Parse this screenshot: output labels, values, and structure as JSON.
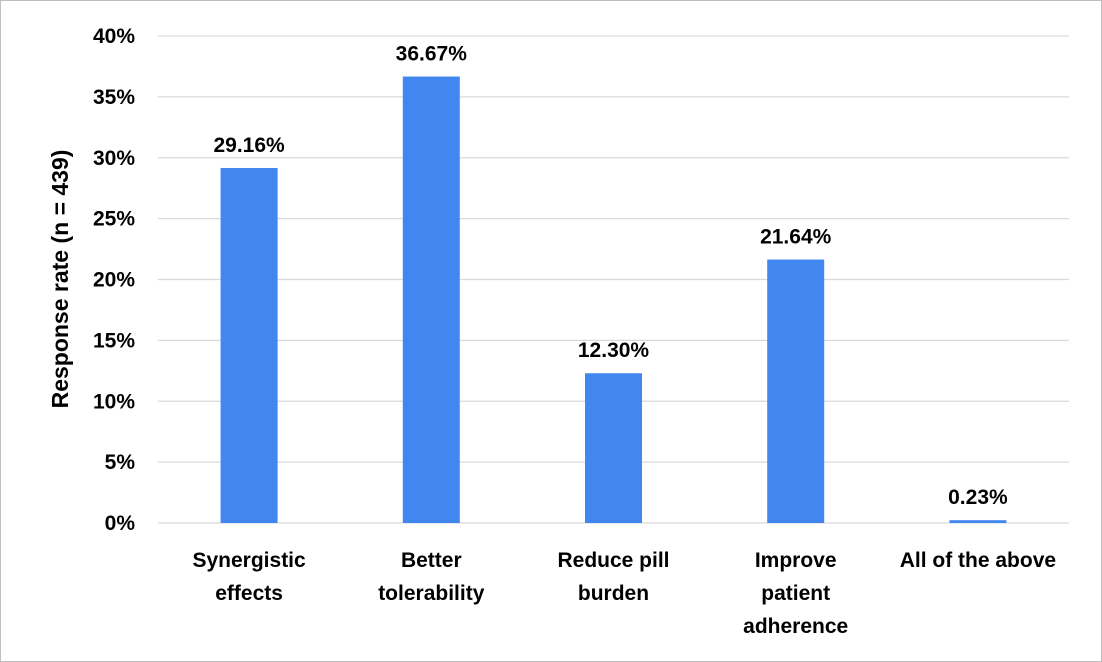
{
  "chart_data": {
    "type": "bar",
    "categories": [
      [
        "Synergistic",
        "effects"
      ],
      [
        "Better",
        "tolerability"
      ],
      [
        "Reduce pill",
        "burden"
      ],
      [
        "Improve",
        "patient",
        "adherence"
      ],
      [
        "All of the above"
      ]
    ],
    "values": [
      29.16,
      36.67,
      12.3,
      21.64,
      0.23
    ],
    "value_labels": [
      "29.16%",
      "36.67%",
      "12.30%",
      "21.64%",
      "0.23%"
    ],
    "title": "",
    "xlabel": "",
    "ylabel": "Response rate (n = 439)",
    "ylim": [
      0,
      40
    ],
    "yticks": [
      0,
      5,
      10,
      15,
      20,
      25,
      30,
      35,
      40
    ],
    "ytick_labels": [
      "0%",
      "5%",
      "10%",
      "15%",
      "20%",
      "25%",
      "30%",
      "35%",
      "40%"
    ],
    "grid": true,
    "legend": "none",
    "bar_color": "#4287f0",
    "grid_color": "#d9d9d9"
  }
}
